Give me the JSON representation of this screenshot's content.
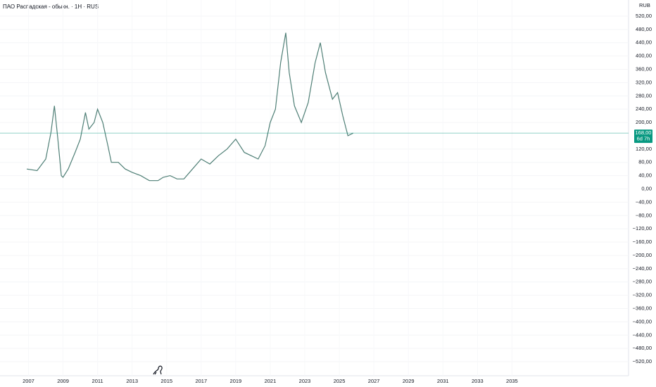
{
  "chart_data": {
    "type": "line",
    "title": "ПАО Распадская - обыкн. · 1Н · RUS",
    "currency": "RUB",
    "x": [
      2006.9,
      2007.5,
      2008.0,
      2008.3,
      2008.5,
      2008.7,
      2008.9,
      2009.0,
      2009.3,
      2009.7,
      2010.0,
      2010.3,
      2010.5,
      2010.8,
      2011.0,
      2011.3,
      2011.6,
      2011.8,
      2012.2,
      2012.6,
      2013.0,
      2013.5,
      2014.0,
      2014.5,
      2014.8,
      2015.2,
      2015.6,
      2016.0,
      2016.5,
      2017.0,
      2017.5,
      2018.0,
      2018.5,
      2019.0,
      2019.5,
      2019.9,
      2020.3,
      2020.7,
      2021.0,
      2021.3,
      2021.6,
      2021.9,
      2022.1,
      2022.4,
      2022.8,
      2023.2,
      2023.6,
      2023.9,
      2024.2,
      2024.6,
      2024.9,
      2025.2,
      2025.5,
      2025.8
    ],
    "series": [
      {
        "color": "#4f7f76",
        "values": [
          60,
          55,
          90,
          170,
          250,
          150,
          40,
          35,
          60,
          110,
          150,
          230,
          180,
          200,
          240,
          200,
          130,
          80,
          80,
          60,
          50,
          40,
          25,
          25,
          35,
          40,
          30,
          30,
          60,
          90,
          75,
          100,
          120,
          150,
          110,
          100,
          90,
          130,
          200,
          240,
          380,
          470,
          350,
          250,
          200,
          260,
          380,
          440,
          350,
          270,
          290,
          220,
          160,
          168
        ]
      }
    ],
    "last_price": 168,
    "last_price_label": "168,00",
    "countdown": "6d 7h",
    "last_price_color": "#089981",
    "xlim": [
      2005.35,
      2041.75
    ],
    "xticks": [
      2007,
      2009,
      2011,
      2013,
      2015,
      2017,
      2019,
      2021,
      2023,
      2025,
      2027,
      2029,
      2031,
      2033,
      2035
    ],
    "ylim": [
      -540,
      540
    ],
    "yticks": [
      {
        "value": 520,
        "label": "520,00"
      },
      {
        "value": 480,
        "label": "480,00"
      },
      {
        "value": 440,
        "label": "440,00"
      },
      {
        "value": 400,
        "label": "400,00"
      },
      {
        "value": 360,
        "label": "360,00"
      },
      {
        "value": 320,
        "label": "320,00"
      },
      {
        "value": 280,
        "label": "280,00"
      },
      {
        "value": 240,
        "label": "240,00"
      },
      {
        "value": 200,
        "label": "200,00"
      },
      {
        "value": 120,
        "label": "120,00"
      },
      {
        "value": 80,
        "label": "80,00"
      },
      {
        "value": 40,
        "label": "40,00"
      },
      {
        "value": 0,
        "label": "0,00"
      },
      {
        "value": -40,
        "label": "−40,00"
      },
      {
        "value": -80,
        "label": "−80,00"
      },
      {
        "value": -120,
        "label": "−120,00"
      },
      {
        "value": -160,
        "label": "−160,00"
      },
      {
        "value": -200,
        "label": "−200,00"
      },
      {
        "value": -240,
        "label": "−240,00"
      },
      {
        "value": -280,
        "label": "−280,00"
      },
      {
        "value": -320,
        "label": "−320,00"
      },
      {
        "value": -360,
        "label": "−360,00"
      },
      {
        "value": -400,
        "label": "−400,00"
      },
      {
        "value": -440,
        "label": "−440,00"
      },
      {
        "value": -480,
        "label": "−480,00"
      },
      {
        "value": -520,
        "label": "−520,00"
      }
    ],
    "grid": true
  }
}
